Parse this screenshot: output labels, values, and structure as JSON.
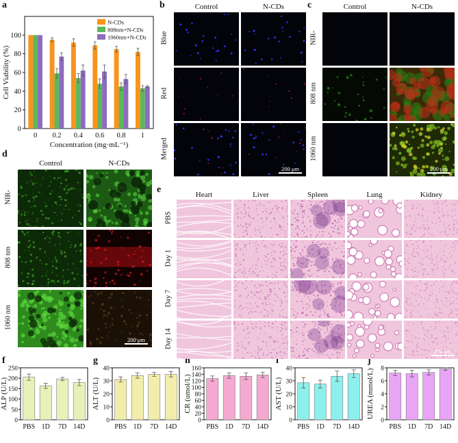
{
  "panels": {
    "a": "a",
    "b": "b",
    "c": "c",
    "d": "d",
    "e": "e",
    "f": "f",
    "g": "g",
    "h": "h",
    "i": "i",
    "j": "j"
  },
  "b": {
    "cols": [
      "Control",
      "N-CDs"
    ],
    "rows": [
      "Blue",
      "Red",
      "Merged"
    ],
    "scale": "200 μm"
  },
  "c": {
    "cols": [
      "Control",
      "N-CDs"
    ],
    "rows": [
      "NIR-",
      "808 nm",
      "1060 nm"
    ],
    "scale": "200 μm"
  },
  "d": {
    "cols": [
      "Control",
      "N-CDs"
    ],
    "rows": [
      "NIR-",
      "808 nm",
      "1060 nm"
    ],
    "scale": "200 μm"
  },
  "e": {
    "cols": [
      "Heart",
      "Liver",
      "Spleen",
      "Lung",
      "Kidney"
    ],
    "rows": [
      "PBS",
      "Day 1",
      "Day 7",
      "Day 14"
    ],
    "scale": "200 μm"
  },
  "chart_data": [
    {
      "id": "a",
      "type": "bar",
      "categories": [
        "0",
        "0.2",
        "0.4",
        "0.6",
        "0.8",
        "1"
      ],
      "xlabel": "Concentration (mg·mL⁻¹)",
      "ylabel": "Cell Viability (%)",
      "ylim": [
        0,
        120
      ],
      "yticks": [
        0,
        20,
        40,
        60,
        80,
        100
      ],
      "legend": "top-right",
      "series": [
        {
          "name": "N-CDs",
          "color": "#f7941d",
          "values": [
            100,
            95,
            92,
            89,
            85,
            82
          ],
          "errors": [
            0,
            2,
            4,
            4,
            3,
            4
          ]
        },
        {
          "name": "808nm+N-CDs",
          "color": "#5cb85c",
          "values": [
            100,
            59,
            54,
            48,
            45,
            43
          ],
          "errors": [
            0,
            5,
            5,
            5,
            4,
            3
          ]
        },
        {
          "name": "1060nm+N-CDs",
          "color": "#8e6bbf",
          "values": [
            100,
            77,
            62,
            61,
            53,
            45
          ],
          "errors": [
            0,
            4,
            6,
            7,
            5,
            1
          ]
        }
      ]
    },
    {
      "id": "f",
      "type": "bar",
      "categories": [
        "PBS",
        "1D",
        "7D",
        "14D"
      ],
      "ylabel": "ALP (U/L)",
      "ylim": [
        0,
        250
      ],
      "yticks": [
        0,
        50,
        100,
        150,
        200,
        250
      ],
      "color": "#e6f2b8",
      "values": [
        205,
        163,
        196,
        179
      ],
      "errors": [
        15,
        12,
        8,
        15
      ]
    },
    {
      "id": "g",
      "type": "bar",
      "categories": [
        "PBS",
        "1D",
        "7D",
        "14D"
      ],
      "ylabel": "ALT (U/L)",
      "ylim": [
        0,
        40
      ],
      "yticks": [
        0,
        10,
        20,
        30,
        40
      ],
      "color": "#f3edab",
      "values": [
        31,
        34,
        35,
        35
      ],
      "errors": [
        2,
        2,
        1.5,
        2
      ]
    },
    {
      "id": "h",
      "type": "bar",
      "categories": [
        "PBS",
        "1D",
        "7D",
        "14D"
      ],
      "ylabel": "CR (umol/L)",
      "ylim": [
        0,
        160
      ],
      "yticks": [
        0,
        20,
        40,
        60,
        80,
        100,
        120,
        140,
        160
      ],
      "color": "#f5a9d0",
      "values": [
        127,
        136,
        134,
        138
      ],
      "errors": [
        8,
        8,
        10,
        8
      ]
    },
    {
      "id": "i",
      "type": "bar",
      "categories": [
        "PBS",
        "1D",
        "7D",
        "14D"
      ],
      "ylabel": "AST (U/L)",
      "ylim": [
        0,
        40
      ],
      "yticks": [
        0,
        10,
        20,
        30,
        40
      ],
      "color": "#8ef0ec",
      "values": [
        28.5,
        27.5,
        33.5,
        35.5
      ],
      "errors": [
        4,
        3,
        4,
        3
      ]
    },
    {
      "id": "j",
      "type": "bar",
      "categories": [
        "PBS",
        "1D",
        "7D",
        "14D"
      ],
      "ylabel": "UREA (mmol/L)",
      "ylim": [
        0,
        8
      ],
      "yticks": [
        0,
        2,
        4,
        6,
        8
      ],
      "color": "#e9a5f5",
      "values": [
        7.2,
        7.1,
        7.3,
        7.8
      ],
      "errors": [
        0.4,
        0.5,
        0.4,
        0.2
      ]
    }
  ]
}
